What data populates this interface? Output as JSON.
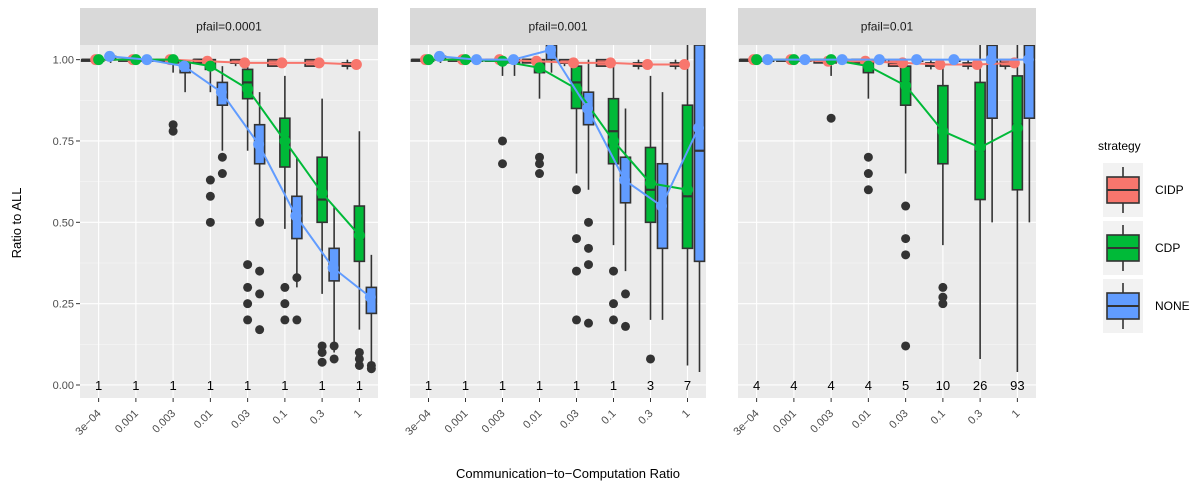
{
  "chart_data": {
    "type": "boxplot-with-lines",
    "facets": [
      "pfail=0.0001",
      "pfail=0.001",
      "pfail=0.01"
    ],
    "xlabel": "Communication−to−Computation Ratio",
    "ylabel": "Ratio to ALL",
    "categories": [
      "3e−04",
      "0.001",
      "0.003",
      "0.01",
      "0.03",
      "0.1",
      "0.3",
      "1"
    ],
    "ylim": [
      -0.04,
      1.045
    ],
    "yticks": [
      0.0,
      0.25,
      0.5,
      0.75,
      1.0
    ],
    "ytick_labels": [
      "0.00",
      "0.25",
      "0.50",
      "0.75",
      "1.00"
    ],
    "grid": true,
    "legend": {
      "title": "strategy",
      "position": "right",
      "entries": [
        "CIDP",
        "CDP",
        "NONE"
      ]
    },
    "colors": {
      "CIDP": "#F8766D",
      "CDP": "#00BA38",
      "NONE": "#619CFF"
    },
    "counts": [
      [
        "1",
        "1",
        "1",
        "1",
        "1",
        "1",
        "1",
        "1"
      ],
      [
        "1",
        "1",
        "1",
        "1",
        "1",
        "1",
        "3",
        "7"
      ],
      [
        "4",
        "4",
        "4",
        "4",
        "5",
        "10",
        "26",
        "93"
      ]
    ],
    "series": [
      {
        "name": "CIDP",
        "means": [
          [
            1.0,
            1.0,
            1.0,
            0.995,
            0.99,
            0.99,
            0.99,
            0.985
          ],
          [
            1.0,
            1.0,
            1.0,
            0.995,
            0.99,
            0.99,
            0.985,
            0.985
          ],
          [
            1.0,
            1.0,
            0.995,
            0.995,
            0.99,
            0.985,
            0.985,
            0.99
          ]
        ],
        "boxes": [
          [
            [
              1,
              1,
              1,
              1,
              1
            ],
            [
              1,
              1,
              1,
              1,
              1
            ],
            [
              1,
              1,
              1,
              1,
              1
            ],
            [
              0.99,
              0.99,
              1,
              1,
              1
            ],
            [
              0.98,
              0.99,
              0.99,
              1,
              1
            ],
            [
              0.98,
              0.98,
              0.99,
              1,
              1
            ],
            [
              0.98,
              0.98,
              0.99,
              1,
              1
            ],
            [
              0.97,
              0.98,
              0.985,
              0.99,
              1
            ]
          ],
          [
            [
              1,
              1,
              1,
              1,
              1
            ],
            [
              1,
              1,
              1,
              1,
              1
            ],
            [
              1,
              1,
              1,
              1,
              1
            ],
            [
              0.99,
              0.99,
              1,
              1,
              1
            ],
            [
              0.98,
              0.99,
              0.99,
              1,
              1
            ],
            [
              0.98,
              0.98,
              0.99,
              1,
              1
            ],
            [
              0.97,
              0.98,
              0.985,
              0.99,
              1
            ],
            [
              0.97,
              0.98,
              0.985,
              0.99,
              1
            ]
          ],
          [
            [
              1,
              1,
              1,
              1,
              1
            ],
            [
              1,
              1,
              1,
              1,
              1
            ],
            [
              0.99,
              0.99,
              1,
              1,
              1
            ],
            [
              0.99,
              0.99,
              1,
              1,
              1
            ],
            [
              0.98,
              0.98,
              0.99,
              1,
              1
            ],
            [
              0.97,
              0.98,
              0.985,
              0.99,
              1
            ],
            [
              0.97,
              0.98,
              0.985,
              0.99,
              1
            ],
            [
              0.97,
              0.98,
              0.99,
              1,
              1
            ]
          ]
        ],
        "outliers": [
          [],
          [],
          []
        ]
      },
      {
        "name": "CDP",
        "means": [
          [
            1.0,
            1.0,
            1.0,
            0.98,
            0.91,
            0.75,
            0.59,
            0.46
          ],
          [
            1.0,
            1.0,
            0.995,
            0.975,
            0.91,
            0.75,
            0.62,
            0.6
          ],
          [
            1.0,
            1.0,
            1.0,
            0.98,
            0.92,
            0.78,
            0.73,
            0.79
          ]
        ],
        "boxes": [
          [
            [
              0.99,
              1,
              1,
              1,
              1
            ],
            [
              0.99,
              1,
              1,
              1,
              1
            ],
            [
              0.96,
              0.99,
              1,
              1,
              1
            ],
            [
              0.9,
              0.97,
              0.99,
              1,
              1
            ],
            [
              0.72,
              0.88,
              0.93,
              0.97,
              1
            ],
            [
              0.48,
              0.67,
              0.76,
              0.82,
              0.95
            ],
            [
              0.28,
              0.5,
              0.57,
              0.7,
              0.88
            ],
            [
              0.17,
              0.38,
              0.45,
              0.55,
              0.78
            ]
          ],
          [
            [
              0.99,
              1,
              1,
              1,
              1
            ],
            [
              0.99,
              1,
              1,
              1,
              1
            ],
            [
              0.95,
              0.99,
              1,
              1,
              1
            ],
            [
              0.88,
              0.96,
              0.99,
              1,
              1
            ],
            [
              0.65,
              0.85,
              0.93,
              0.98,
              1
            ],
            [
              0.43,
              0.68,
              0.78,
              0.88,
              1
            ],
            [
              0.2,
              0.5,
              0.6,
              0.73,
              0.95
            ],
            [
              0.06,
              0.42,
              0.58,
              0.86,
              1.045
            ]
          ],
          [
            [
              0.99,
              1,
              1,
              1,
              1
            ],
            [
              0.99,
              1,
              1,
              1,
              1
            ],
            [
              0.95,
              0.99,
              1,
              1,
              1
            ],
            [
              0.88,
              0.96,
              0.99,
              1,
              1
            ],
            [
              0.65,
              0.86,
              0.93,
              0.98,
              1
            ],
            [
              0.43,
              0.68,
              0.78,
              0.92,
              1
            ],
            [
              0.08,
              0.57,
              0.72,
              0.93,
              1.045
            ],
            [
              0.04,
              0.6,
              0.8,
              0.95,
              1.045
            ]
          ]
        ],
        "outliers": [
          [
            [],
            [],
            [
              0.8,
              0.78
            ],
            [
              0.63,
              0.58,
              0.5
            ],
            [
              0.37,
              0.3,
              0.25,
              0.2
            ],
            [
              0.3,
              0.25,
              0.2
            ],
            [
              0.1,
              0.12,
              0.07
            ],
            [
              0.1,
              0.08,
              0.06
            ]
          ],
          [
            [],
            [],
            [
              0.68,
              0.75
            ],
            [
              0.7,
              0.68,
              0.65
            ],
            [
              0.6,
              0.45,
              0.35,
              0.2
            ],
            [
              0.35,
              0.25,
              0.2
            ],
            [
              0.08
            ],
            []
          ],
          [
            [],
            [],
            [
              0.82
            ],
            [
              0.7,
              0.65,
              0.6
            ],
            [
              0.55,
              0.45,
              0.4,
              0.12
            ],
            [
              0.3,
              0.27,
              0.25
            ],
            [],
            []
          ]
        ]
      },
      {
        "name": "NONE",
        "means": [
          [
            1.01,
            1.0,
            0.98,
            0.9,
            0.74,
            0.52,
            0.36,
            0.27
          ],
          [
            1.01,
            1.0,
            1.0,
            1.03,
            0.85,
            0.63,
            0.55,
            0.79
          ],
          [
            1.0,
            1.0,
            1.0,
            1.0,
            1.0,
            1.0,
            1.0,
            1.0
          ]
        ],
        "boxes": [
          [
            [
              0.99,
              1,
              1,
              1.01,
              1.01
            ],
            [
              0.99,
              1,
              1,
              1,
              1.01
            ],
            [
              0.9,
              0.96,
              0.98,
              0.99,
              1
            ],
            [
              0.72,
              0.86,
              0.9,
              0.93,
              0.98
            ],
            [
              0.5,
              0.68,
              0.74,
              0.8,
              0.9
            ],
            [
              0.3,
              0.45,
              0.52,
              0.58,
              0.7
            ],
            [
              0.1,
              0.32,
              0.36,
              0.42,
              0.55
            ],
            [
              0.04,
              0.22,
              0.27,
              0.3,
              0.4
            ]
          ],
          [
            [
              0.99,
              1,
              1,
              1.01,
              1.01
            ],
            [
              0.99,
              1,
              1,
              1,
              1.01
            ],
            [
              0.95,
              0.99,
              1,
              1,
              1
            ],
            [
              0.96,
              1.0,
              1.03,
              1.045,
              1.045
            ],
            [
              0.6,
              0.8,
              0.85,
              0.9,
              1
            ],
            [
              0.35,
              0.56,
              0.63,
              0.7,
              0.85
            ],
            [
              0.2,
              0.42,
              0.55,
              0.68,
              0.9
            ],
            [
              0.04,
              0.38,
              0.72,
              1.045,
              1.045
            ]
          ],
          [
            [
              1,
              1,
              1,
              1,
              1
            ],
            [
              1,
              1,
              1,
              1,
              1
            ],
            [
              1,
              1,
              1,
              1,
              1
            ],
            [
              1,
              1,
              1,
              1,
              1
            ],
            [
              1,
              1,
              1,
              1,
              1
            ],
            [
              1,
              1,
              1,
              1,
              1
            ],
            [
              0.5,
              0.82,
              1.045,
              1.045,
              1.045
            ],
            [
              0.5,
              0.82,
              1.045,
              1.045,
              1.045
            ]
          ]
        ],
        "outliers": [
          [
            [],
            [],
            [],
            [
              0.7,
              0.65
            ],
            [
              0.5,
              0.35,
              0.28,
              0.17
            ],
            [
              0.33,
              0.2
            ],
            [
              0.12,
              0.08
            ],
            [
              0.06,
              0.05
            ]
          ],
          [
            [],
            [],
            [],
            [],
            [
              0.5,
              0.42,
              0.37,
              0.19
            ],
            [
              0.28,
              0.18
            ],
            [],
            []
          ],
          [
            [],
            [],
            [],
            [],
            [],
            [],
            [],
            []
          ]
        ]
      }
    ]
  }
}
